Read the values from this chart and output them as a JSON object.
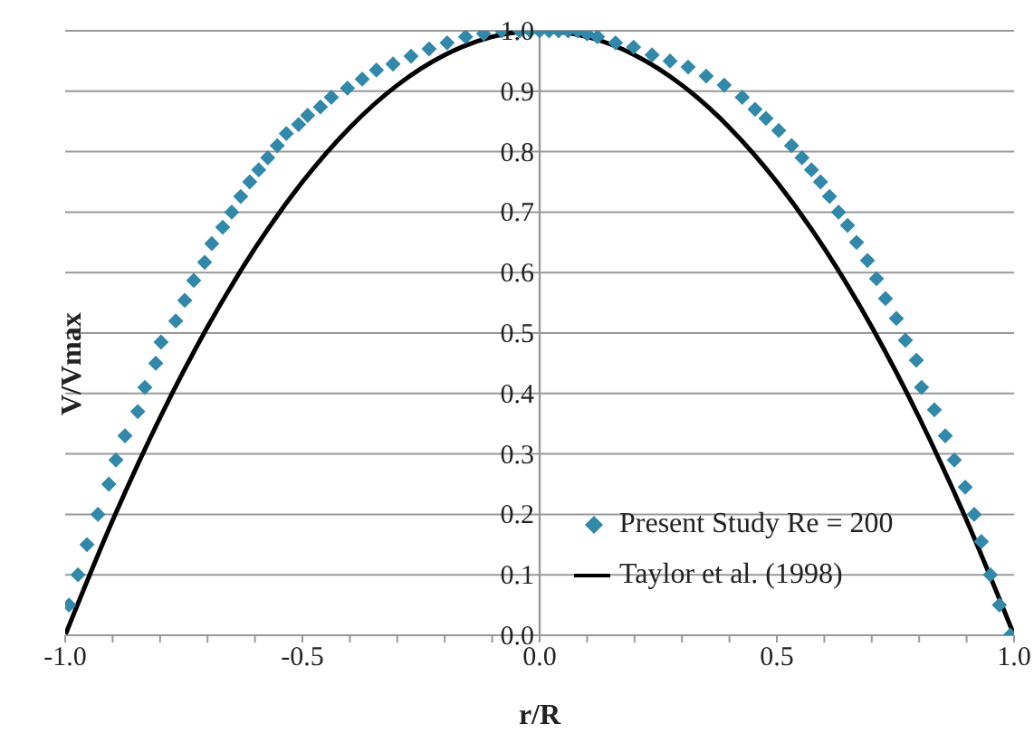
{
  "chart_data": {
    "type": "scatter",
    "xlabel": "r/R",
    "ylabel": "V/Vmax",
    "xlim": [
      -1,
      1
    ],
    "ylim": [
      0,
      1
    ],
    "xticks": [
      {
        "value": -1,
        "label": "-1.0"
      },
      {
        "value": -0.9,
        "label": null
      },
      {
        "value": -0.8,
        "label": null
      },
      {
        "value": -0.7,
        "label": null
      },
      {
        "value": -0.6,
        "label": null
      },
      {
        "value": -0.5,
        "label": "-0.5"
      },
      {
        "value": -0.4,
        "label": null
      },
      {
        "value": -0.3,
        "label": null
      },
      {
        "value": -0.2,
        "label": null
      },
      {
        "value": -0.1,
        "label": null
      },
      {
        "value": 0,
        "label": "0.0"
      },
      {
        "value": 0.1,
        "label": null
      },
      {
        "value": 0.2,
        "label": null
      },
      {
        "value": 0.3,
        "label": null
      },
      {
        "value": 0.4,
        "label": null
      },
      {
        "value": 0.5,
        "label": "0.5"
      },
      {
        "value": 0.6,
        "label": null
      },
      {
        "value": 0.7,
        "label": null
      },
      {
        "value": 0.8,
        "label": null
      },
      {
        "value": 0.9,
        "label": null
      },
      {
        "value": 1,
        "label": "1.0"
      }
    ],
    "yticks": [
      {
        "value": 0,
        "label": "0.0"
      },
      0.1,
      0.2,
      0.3,
      0.4,
      0.5,
      0.6,
      0.7,
      0.8,
      0.9,
      {
        "value": 1,
        "label": "1.0"
      }
    ],
    "grid": "y",
    "legend": "bottom right",
    "series": [
      {
        "name": "Present Study Re = 200",
        "marker": "diamond",
        "color": "#3288a8",
        "x": [
          -0.992,
          -0.973,
          -0.954,
          -0.931,
          -0.908,
          -0.893,
          -0.874,
          -0.847,
          -0.832,
          -0.809,
          -0.798,
          -0.767,
          -0.748,
          -0.729,
          -0.706,
          -0.691,
          -0.668,
          -0.649,
          -0.63,
          -0.611,
          -0.592,
          -0.573,
          -0.553,
          -0.534,
          -0.508,
          -0.489,
          -0.462,
          -0.439,
          -0.405,
          -0.374,
          -0.344,
          -0.309,
          -0.271,
          -0.233,
          -0.195,
          -0.156,
          -0.118,
          -0.08,
          -0.042,
          -0.02,
          0.0,
          0.02,
          0.04,
          0.06,
          0.08,
          0.1,
          0.122,
          0.16,
          0.198,
          0.237,
          0.275,
          0.313,
          0.351,
          0.389,
          0.427,
          0.454,
          0.477,
          0.504,
          0.531,
          0.553,
          0.573,
          0.592,
          0.611,
          0.63,
          0.649,
          0.668,
          0.691,
          0.71,
          0.729,
          0.752,
          0.771,
          0.794,
          0.805,
          0.832,
          0.855,
          0.874,
          0.897,
          0.916,
          0.931,
          0.95,
          0.969,
          0.992
        ],
        "values": [
          0.05,
          0.1,
          0.15,
          0.2,
          0.25,
          0.29,
          0.33,
          0.37,
          0.41,
          0.45,
          0.485,
          0.52,
          0.554,
          0.587,
          0.617,
          0.648,
          0.675,
          0.7,
          0.726,
          0.75,
          0.77,
          0.79,
          0.81,
          0.83,
          0.845,
          0.86,
          0.874,
          0.89,
          0.905,
          0.92,
          0.935,
          0.945,
          0.958,
          0.97,
          0.98,
          0.99,
          0.995,
          1.0,
          1.0,
          1.0,
          1.0,
          1.0,
          1.0,
          1.0,
          1.0,
          0.995,
          0.99,
          0.98,
          0.973,
          0.96,
          0.95,
          0.94,
          0.925,
          0.91,
          0.89,
          0.87,
          0.855,
          0.835,
          0.81,
          0.79,
          0.77,
          0.75,
          0.726,
          0.7,
          0.678,
          0.65,
          0.62,
          0.59,
          0.557,
          0.524,
          0.488,
          0.455,
          0.41,
          0.373,
          0.33,
          0.29,
          0.245,
          0.2,
          0.155,
          0.1,
          0.05,
          0.0
        ]
      },
      {
        "name": "Taylor et al. (1998)",
        "type": "line",
        "marker": "none",
        "color": "#000000",
        "x": [
          -1,
          -0.9,
          -0.8,
          -0.7,
          -0.6,
          -0.5,
          -0.4,
          -0.3,
          -0.2,
          -0.1,
          0,
          0.1,
          0.2,
          0.3,
          0.4,
          0.5,
          0.6,
          0.7,
          0.8,
          0.9,
          1
        ],
        "values": [
          0,
          0.19,
          0.36,
          0.51,
          0.64,
          0.75,
          0.84,
          0.91,
          0.96,
          0.99,
          1,
          0.99,
          0.96,
          0.91,
          0.84,
          0.75,
          0.64,
          0.51,
          0.36,
          0.19,
          0
        ]
      }
    ]
  }
}
